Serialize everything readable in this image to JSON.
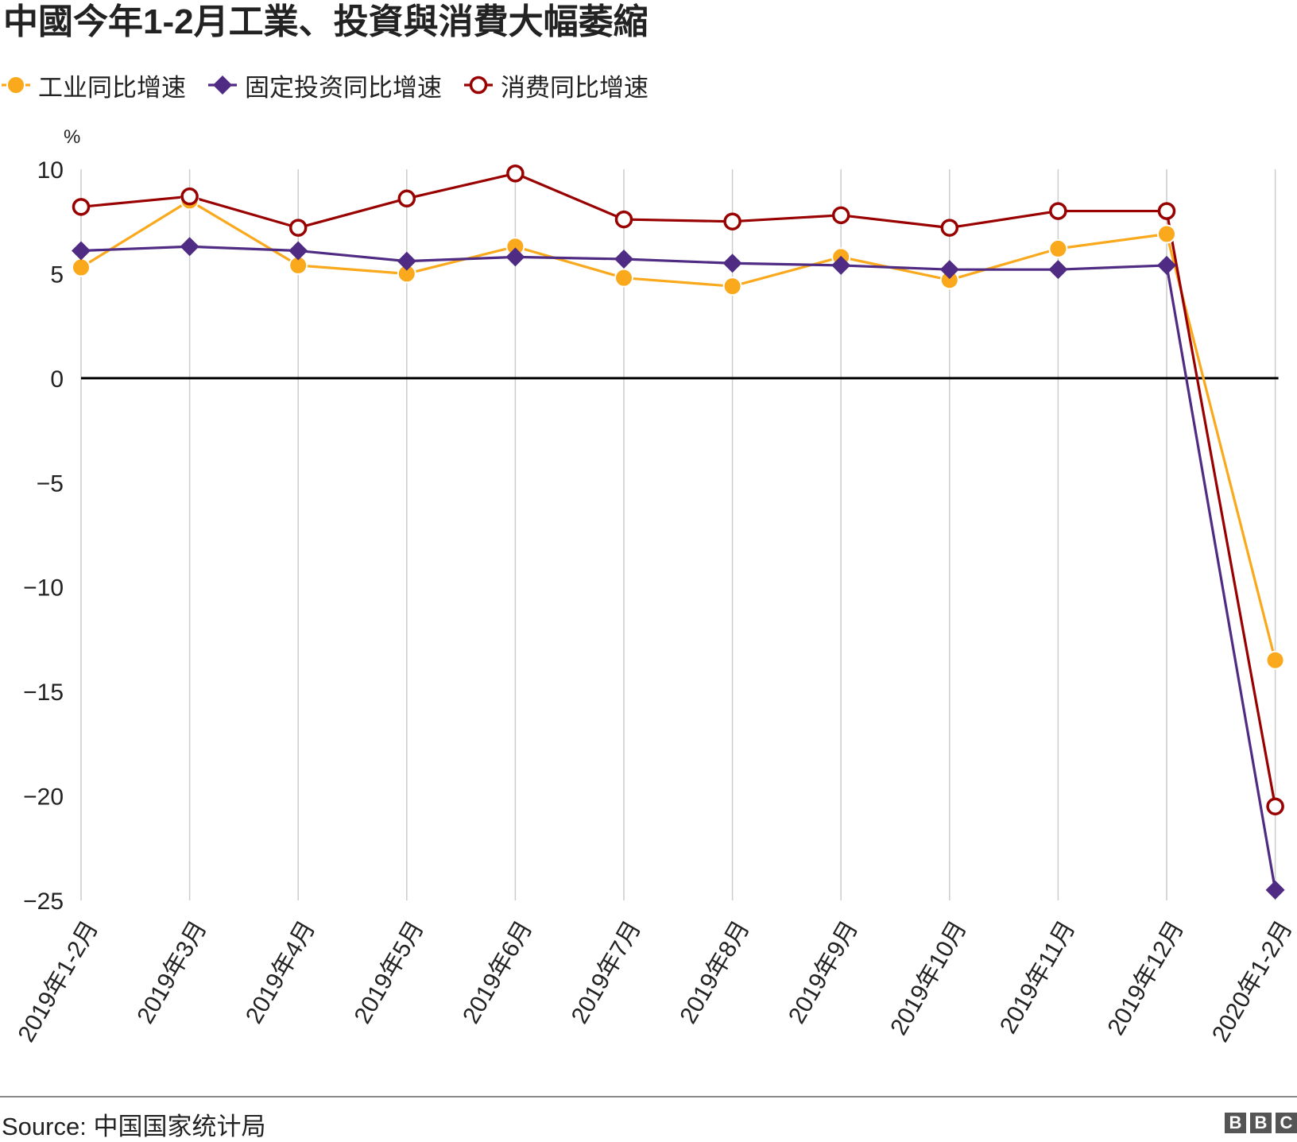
{
  "title": "中國今年1-2月工業、投資與消費大幅萎縮",
  "source": "Source: 中国国家统计局",
  "logo": [
    "B",
    "B",
    "C"
  ],
  "colors": {
    "industry": "#F9A91B",
    "investment": "#4F2B83",
    "consumption": "#990000",
    "grid": "#CCCCCC",
    "zero_line": "#000000"
  },
  "chart_data": {
    "type": "line",
    "title": "中國今年1-2月工業、投資與消費大幅萎縮",
    "ylabel": "%",
    "xlabel": "",
    "ylim": [
      -25,
      10
    ],
    "y_ticks": [
      10,
      5,
      0,
      -5,
      -10,
      -15,
      -20,
      -25
    ],
    "y_tick_labels": [
      "10",
      "5",
      "0",
      "−5",
      "−10",
      "−15",
      "−20",
      "−25"
    ],
    "grid": "vertical",
    "legend_position": "top-left",
    "categories": [
      "2019年1-2月",
      "2019年3月",
      "2019年4月",
      "2019年5月",
      "2019年6月",
      "2019年7月",
      "2019年8月",
      "2019年9月",
      "2019年10月",
      "2019年11月",
      "2019年12月",
      "2020年1-2月"
    ],
    "series": [
      {
        "name": "工业同比增速",
        "marker": "filled-circle",
        "color": "#F9A91B",
        "values": [
          5.3,
          8.5,
          5.4,
          5.0,
          6.3,
          4.8,
          4.4,
          5.8,
          4.7,
          6.2,
          6.9,
          -13.5
        ]
      },
      {
        "name": "固定投资同比增速",
        "marker": "diamond",
        "color": "#4F2B83",
        "values": [
          6.1,
          6.3,
          6.1,
          5.6,
          5.8,
          5.7,
          5.5,
          5.4,
          5.2,
          5.2,
          5.4,
          -24.5
        ]
      },
      {
        "name": "消费同比增速",
        "marker": "open-circle",
        "color": "#990000",
        "values": [
          8.2,
          8.7,
          7.2,
          8.6,
          9.8,
          7.6,
          7.5,
          7.8,
          7.2,
          8.0,
          8.0,
          -20.5
        ]
      }
    ]
  }
}
